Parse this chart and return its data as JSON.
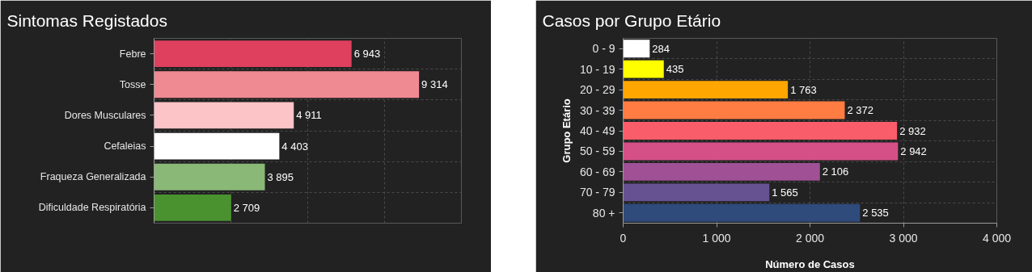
{
  "chart_data": [
    {
      "type": "bar",
      "orientation": "horizontal",
      "title": "Sintomas Registados",
      "categories": [
        "Febre",
        "Tosse",
        "Dores Musculares",
        "Cefaleias",
        "Fraqueza Generalizada",
        "Dificuldade Respiratória"
      ],
      "values": [
        6943,
        9314,
        4911,
        4403,
        3895,
        2709
      ],
      "colors": [
        "#de405e",
        "#ef8a92",
        "#fcc4c6",
        "#ffffff",
        "#8ab877",
        "#4a9230"
      ],
      "data_labels": true,
      "grid": true,
      "tick_labels": "y"
    },
    {
      "type": "bar",
      "orientation": "horizontal",
      "title": "Casos por Grupo Etário",
      "xlabel": "Número de Casos",
      "ylabel": "Grupo Etário",
      "categories": [
        "0 - 9",
        "10 - 19",
        "20 - 29",
        "30 - 39",
        "40 - 49",
        "50 - 59",
        "60 - 69",
        "70 - 79",
        "80 +"
      ],
      "values": [
        284,
        435,
        1763,
        2372,
        2932,
        2942,
        2106,
        1565,
        2535
      ],
      "colors": [
        "#ffffff",
        "#ffff00",
        "#ffa600",
        "#ff7c43",
        "#f95d6a",
        "#d45087",
        "#a05195",
        "#665191",
        "#2f4b7c"
      ],
      "xlim": [
        0,
        4000
      ],
      "xticks": [
        0,
        {
          "value": 1000,
          "label": "1 000"
        },
        {
          "value": 2000,
          "label": "2 000"
        },
        {
          "value": 3000,
          "label": "3 000"
        },
        {
          "value": 4000,
          "label": "4 000"
        }
      ],
      "data_labels": true,
      "grid": true
    }
  ]
}
